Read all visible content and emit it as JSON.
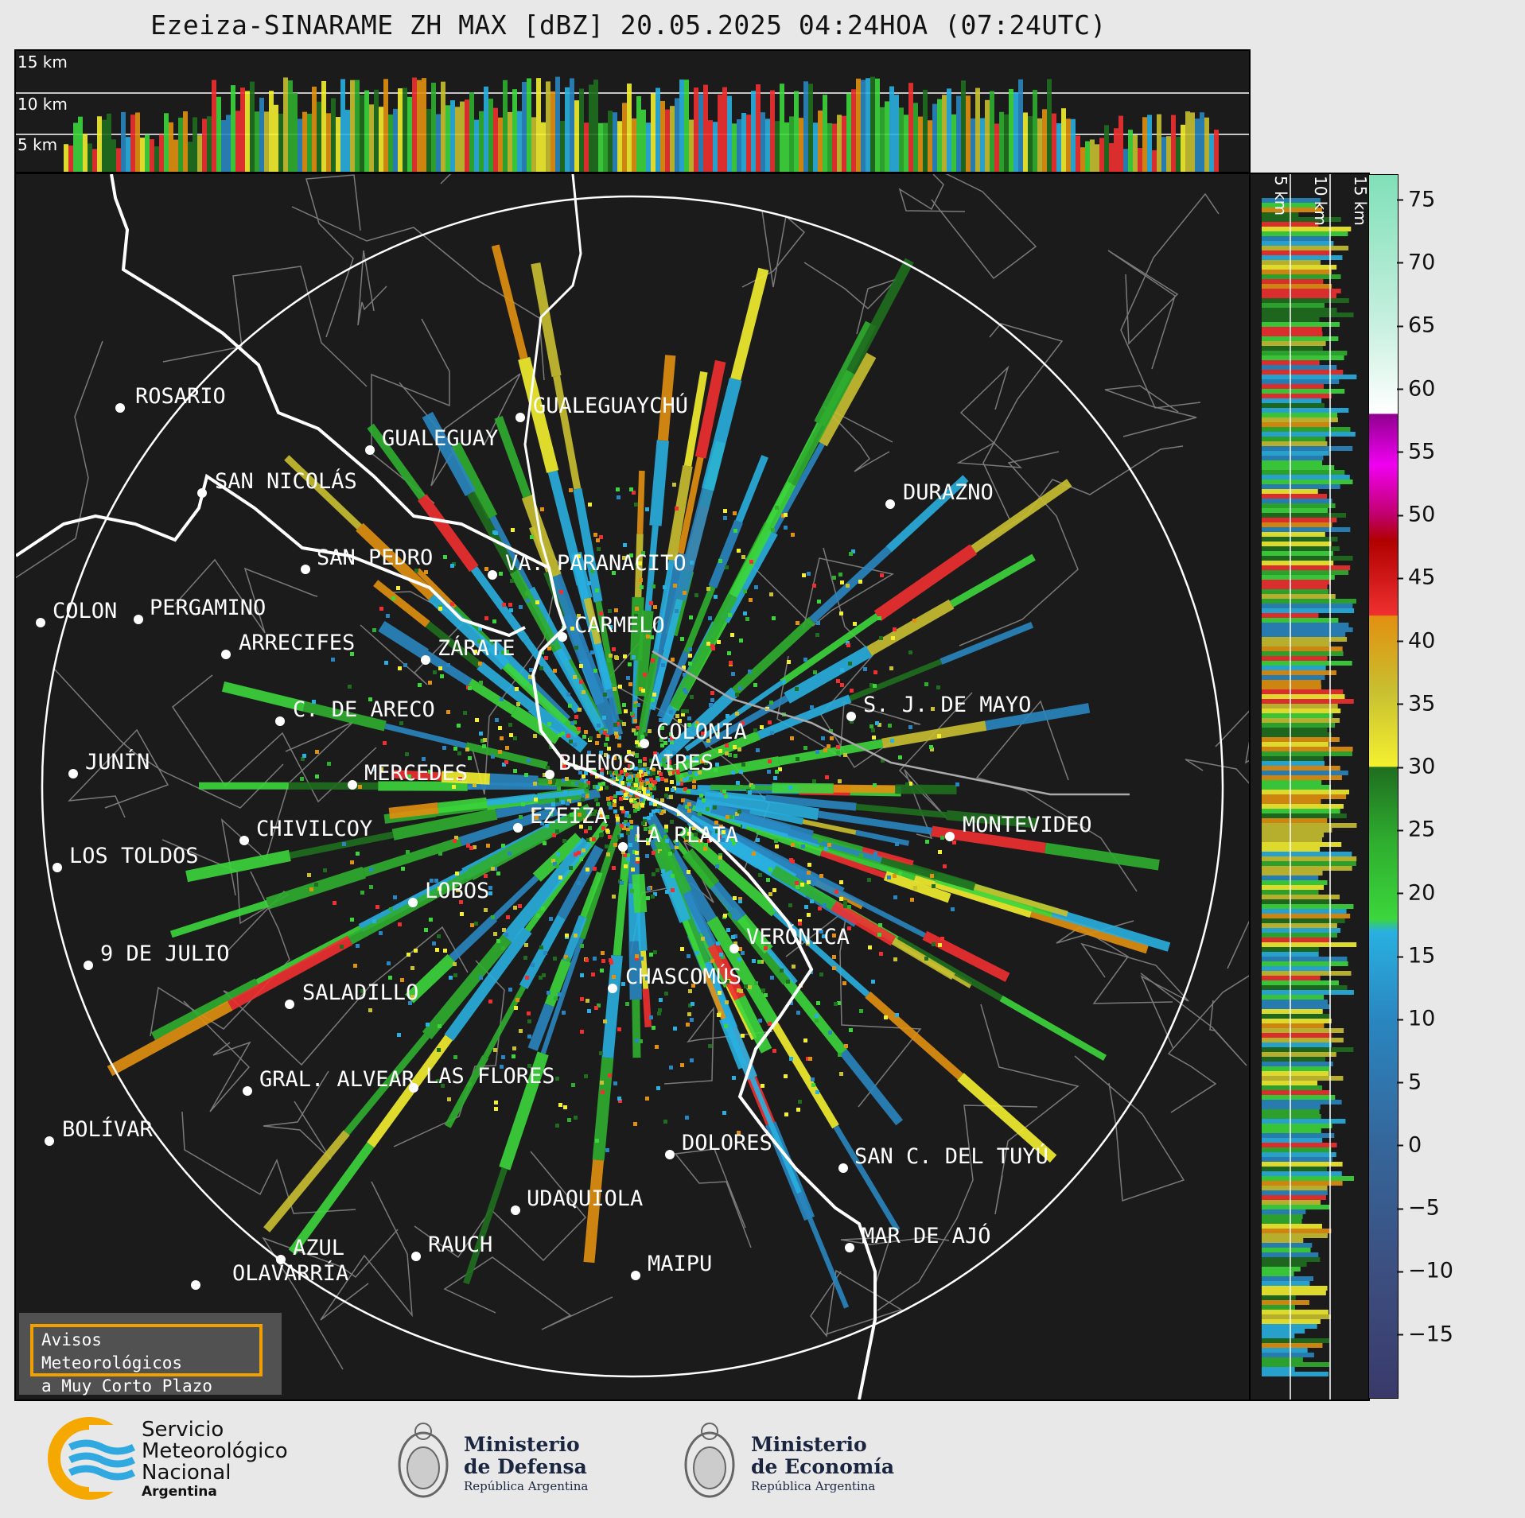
{
  "title": "Ezeiza-SINARAME ZH MAX [dBZ] 20.05.2025 04:24HOA (07:24UTC)",
  "top_profile_labels": [
    "15 km",
    "10 km",
    "5 km"
  ],
  "side_profile_labels": [
    "5 km",
    "10 km",
    "15 km"
  ],
  "colorbar": {
    "unit": "dBZ",
    "range": [
      -20,
      77
    ],
    "ticks": [
      "75",
      "70",
      "65",
      "60",
      "55",
      "50",
      "45",
      "40",
      "35",
      "30",
      "25",
      "20",
      "15",
      "10",
      "5",
      "0",
      "−5",
      "−10",
      "−15"
    ],
    "stops": [
      {
        "v": -20,
        "c": "#3a3a6a"
      },
      {
        "v": -10,
        "c": "#3c4f80"
      },
      {
        "v": 0,
        "c": "#35669a"
      },
      {
        "v": 10,
        "c": "#2a86c0"
      },
      {
        "v": 17,
        "c": "#29b0e0"
      },
      {
        "v": 18,
        "c": "#3cd63c"
      },
      {
        "v": 24,
        "c": "#2fae2f"
      },
      {
        "v": 30,
        "c": "#1f6e1f"
      },
      {
        "v": 30.1,
        "c": "#f4f030"
      },
      {
        "v": 36,
        "c": "#c8c030"
      },
      {
        "v": 42,
        "c": "#e29010"
      },
      {
        "v": 42.1,
        "c": "#f03030"
      },
      {
        "v": 48,
        "c": "#b00000"
      },
      {
        "v": 50,
        "c": "#c0006a"
      },
      {
        "v": 54,
        "c": "#f000f0"
      },
      {
        "v": 58,
        "c": "#900090"
      },
      {
        "v": 58.1,
        "c": "#ffffff"
      },
      {
        "v": 65,
        "c": "#c8f0e0"
      },
      {
        "v": 77,
        "c": "#80e0b8"
      }
    ]
  },
  "cities": [
    {
      "name": "ROSARIO"
    },
    {
      "name": "GUALEGUAYCHÚ"
    },
    {
      "name": "GUALEGUAY"
    },
    {
      "name": "SAN NICOLÁS"
    },
    {
      "name": "DURAZNO"
    },
    {
      "name": "SAN PEDRO"
    },
    {
      "name": "VA. PARANACITO"
    },
    {
      "name": "COLON"
    },
    {
      "name": "PERGAMINO"
    },
    {
      "name": "CARMELO"
    },
    {
      "name": "ARRECIFES"
    },
    {
      "name": "ZÁRATE"
    },
    {
      "name": "S. J. DE MAYO"
    },
    {
      "name": "C. DE ARECO"
    },
    {
      "name": "COLONIA"
    },
    {
      "name": "JUNÍN"
    },
    {
      "name": "MERCEDES"
    },
    {
      "name": "BUENOS AIRES"
    },
    {
      "name": "EZEIZA"
    },
    {
      "name": "MONTEVIDEO"
    },
    {
      "name": "CHIVILCOY"
    },
    {
      "name": "LA PLATA"
    },
    {
      "name": "LOS TOLDOS"
    },
    {
      "name": "LOBOS"
    },
    {
      "name": "VERÓNICA"
    },
    {
      "name": "9 DE JULIO"
    },
    {
      "name": "CHASCOMÚS"
    },
    {
      "name": "SALADILLO"
    },
    {
      "name": "GRAL. ALVEAR"
    },
    {
      "name": "LAS FLORES"
    },
    {
      "name": "BOLÍVAR"
    },
    {
      "name": "DOLORES"
    },
    {
      "name": "SAN C. DEL TUYÚ"
    },
    {
      "name": "UDAQUIOLA"
    },
    {
      "name": "AZUL"
    },
    {
      "name": "RAUCH"
    },
    {
      "name": "MAR DE AJÓ"
    },
    {
      "name": "OLAVARRÍA"
    },
    {
      "name": "MAIPU"
    }
  ],
  "notice": {
    "line1": "Avisos Meteorológicos",
    "line2": "a Muy Corto Plazo"
  },
  "logos": {
    "smn": {
      "line1": "Servicio",
      "line2": "Meteorológico",
      "line3": "Nacional",
      "line4": "Argentina"
    },
    "defensa": {
      "line1": "Ministerio",
      "line2": "de Defensa",
      "line3": "República Argentina"
    },
    "economia": {
      "line1": "Ministerio",
      "line2": "de Economía",
      "line3": "República Argentina"
    }
  },
  "colors": {
    "background": "#1b1b1b",
    "land_border": "#7a7a7a",
    "coast": "#ffffff",
    "accent": "#f0a000"
  }
}
